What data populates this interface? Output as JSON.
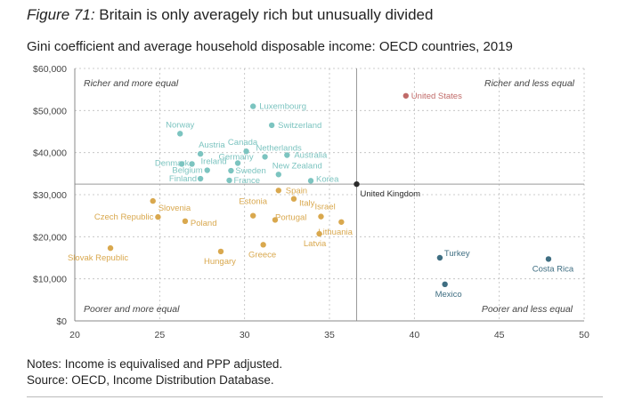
{
  "figure_label": "Figure 71:",
  "title": "Britain is only averagely rich but unusually divided",
  "subtitle": "Gini coefficient and average household disposable income: OECD countries, 2019",
  "notes": [
    "Notes: Income is equivalised and PPP adjusted.",
    "Source: OECD, Income Distribution Database."
  ],
  "colors": {
    "rich_equal": "#7cc4c0",
    "poor_equal": "#d9a84e",
    "rich_unequal": "#c06a68",
    "poor_unequal": "#3f6e82",
    "uk": "#2b2b2b",
    "grid": "#bdbdbd",
    "axis_line": "#888888"
  },
  "chart_data": {
    "type": "scatter",
    "xlabel": "",
    "ylabel": "",
    "xlim": [
      20,
      50
    ],
    "ylim": [
      0,
      60000
    ],
    "x_ticks": [
      20,
      25,
      30,
      35,
      40,
      45,
      50
    ],
    "y_ticks": [
      0,
      10000,
      20000,
      30000,
      40000,
      50000,
      60000
    ],
    "y_tick_labels": [
      "$0",
      "$10,000",
      "$20,000",
      "$30,000",
      "$40,000",
      "$50,000",
      "$60,000"
    ],
    "grid": true,
    "reference_lines": {
      "x": 36.6,
      "y": 32500
    },
    "quadrant_labels": [
      {
        "text": "Richer and more equal",
        "position": "top-left"
      },
      {
        "text": "Richer and less equal",
        "position": "top-right"
      },
      {
        "text": "Poorer and more equal",
        "position": "bottom-left"
      },
      {
        "text": "Poorer and less equal",
        "position": "bottom-right"
      }
    ],
    "points": [
      {
        "label": "United States",
        "x": 39.5,
        "y": 53500,
        "group": "rich_unequal"
      },
      {
        "label": "Luxembourg",
        "x": 30.5,
        "y": 51000,
        "group": "rich_equal"
      },
      {
        "label": "Switzerland",
        "x": 31.6,
        "y": 46500,
        "group": "rich_equal"
      },
      {
        "label": "Norway",
        "x": 26.2,
        "y": 44500,
        "group": "rich_equal"
      },
      {
        "label": "Canada",
        "x": 30.1,
        "y": 40300,
        "group": "rich_equal"
      },
      {
        "label": "Austria",
        "x": 27.4,
        "y": 39700,
        "group": "rich_equal"
      },
      {
        "label": "Netherlands",
        "x": 31.2,
        "y": 39000,
        "group": "rich_equal"
      },
      {
        "label": "Australia",
        "x": 32.5,
        "y": 39400,
        "group": "rich_equal"
      },
      {
        "label": "Germany",
        "x": 29.6,
        "y": 37500,
        "group": "rich_equal"
      },
      {
        "label": "Denmark",
        "x": 26.3,
        "y": 37300,
        "group": "rich_equal"
      },
      {
        "label": "Ireland",
        "x": 26.9,
        "y": 37300,
        "group": "rich_equal"
      },
      {
        "label": "Belgium",
        "x": 27.8,
        "y": 35800,
        "group": "rich_equal"
      },
      {
        "label": "Sweden",
        "x": 29.2,
        "y": 35700,
        "group": "rich_equal"
      },
      {
        "label": "New Zealand",
        "x": 32.0,
        "y": 34800,
        "group": "rich_equal"
      },
      {
        "label": "Finland",
        "x": 27.4,
        "y": 33800,
        "group": "rich_equal"
      },
      {
        "label": "France",
        "x": 29.1,
        "y": 33400,
        "group": "rich_equal"
      },
      {
        "label": "Korea",
        "x": 33.9,
        "y": 33300,
        "group": "rich_equal"
      },
      {
        "label": "United Kingdom",
        "x": 36.6,
        "y": 32500,
        "group": "uk"
      },
      {
        "label": "Spain",
        "x": 32.0,
        "y": 31000,
        "group": "poor_equal"
      },
      {
        "label": "Italy",
        "x": 32.9,
        "y": 29000,
        "group": "poor_equal"
      },
      {
        "label": "Slovenia",
        "x": 24.6,
        "y": 28500,
        "group": "poor_equal"
      },
      {
        "label": "Estonia",
        "x": 30.5,
        "y": 25000,
        "group": "poor_equal"
      },
      {
        "label": "Israel",
        "x": 34.5,
        "y": 24800,
        "group": "poor_equal"
      },
      {
        "label": "Czech Republic",
        "x": 24.9,
        "y": 24700,
        "group": "poor_equal"
      },
      {
        "label": "Portugal",
        "x": 31.8,
        "y": 24000,
        "group": "poor_equal"
      },
      {
        "label": "Lithuania",
        "x": 35.7,
        "y": 23500,
        "group": "poor_equal"
      },
      {
        "label": "Poland",
        "x": 26.5,
        "y": 23700,
        "group": "poor_equal"
      },
      {
        "label": "Latvia",
        "x": 34.4,
        "y": 20700,
        "group": "poor_equal"
      },
      {
        "label": "Greece",
        "x": 31.1,
        "y": 18100,
        "group": "poor_equal"
      },
      {
        "label": "Slovak Republic",
        "x": 22.1,
        "y": 17300,
        "group": "poor_equal"
      },
      {
        "label": "Hungary",
        "x": 28.6,
        "y": 16500,
        "group": "poor_equal"
      },
      {
        "label": "Turkey",
        "x": 41.5,
        "y": 15000,
        "group": "poor_unequal"
      },
      {
        "label": "Costa Rica",
        "x": 47.9,
        "y": 14700,
        "group": "poor_unequal"
      },
      {
        "label": "Mexico",
        "x": 41.8,
        "y": 8700,
        "group": "poor_unequal"
      }
    ]
  }
}
